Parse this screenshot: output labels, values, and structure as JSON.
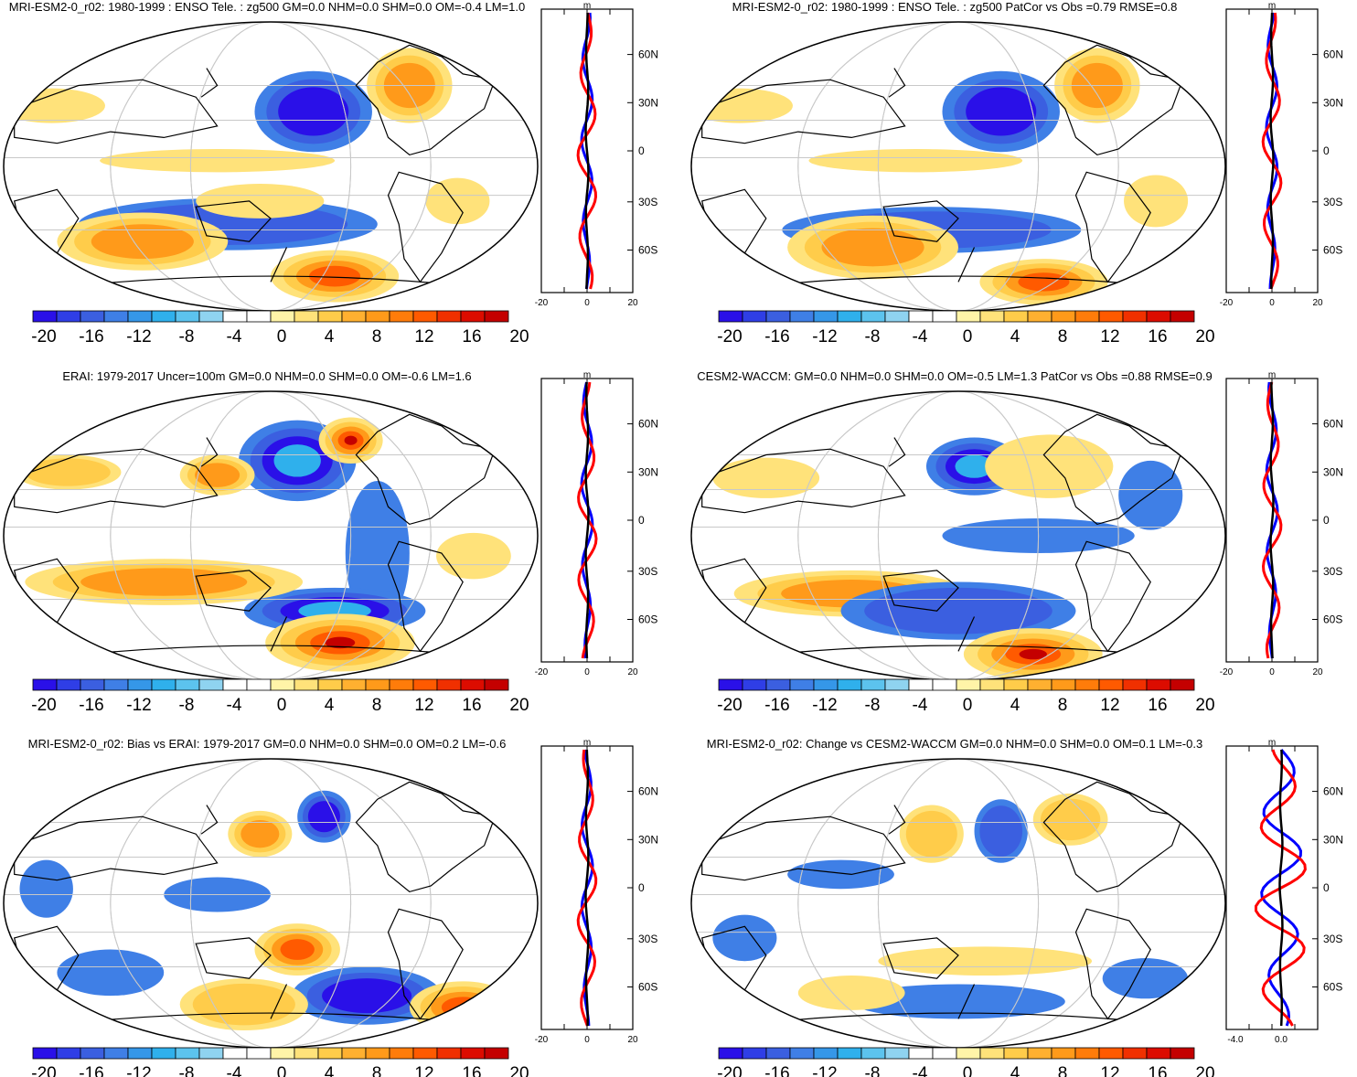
{
  "panels": [
    {
      "title": "MRI-ESM2-0_r02: 1980-1999 : ENSO Tele. : zg500 GM=0.0 NHM=0.0 SHM=0.0 OM=-0.4 LM=1.0",
      "profile": {
        "unit": "m",
        "xticks": [
          "-20",
          "0",
          "20"
        ]
      }
    },
    {
      "title": "MRI-ESM2-0_r02: 1980-1999 : ENSO Tele. : zg500 PatCor vs Obs =0.79 RMSE=0.8",
      "profile": {
        "unit": "m",
        "xticks": [
          "-20",
          "0",
          "20"
        ]
      }
    },
    {
      "title": "ERAI: 1979-2017 Uncer=100m GM=0.0 NHM=0.0 SHM=0.0 OM=-0.6 LM=1.6",
      "profile": {
        "unit": "m",
        "xticks": [
          "-20",
          "0",
          "20"
        ]
      }
    },
    {
      "title": "CESM2-WACCM: GM=0.0 NHM=0.0 SHM=0.0 OM=-0.5 LM=1.3 PatCor vs Obs =0.88 RMSE=0.9",
      "profile": {
        "unit": "m",
        "xticks": [
          "-20",
          "0",
          "20"
        ]
      }
    },
    {
      "title": "MRI-ESM2-0_r02: Bias vs ERAI: 1979-2017 GM=0.0 NHM=0.0 SHM=0.0 OM=0.2 LM=-0.6",
      "profile": {
        "unit": "m",
        "xticks": [
          "-20",
          "0",
          "20"
        ]
      }
    },
    {
      "title": "MRI-ESM2-0_r02: Change vs CESM2-WACCM GM=0.0 NHM=0.0 SHM=0.0 OM=0.1 LM=-0.3",
      "profile": {
        "unit": "m",
        "xticks": [
          "-4.0",
          "0.0"
        ]
      }
    }
  ],
  "lat_labels": [
    "60N",
    "30N",
    "0",
    "30S",
    "60S"
  ],
  "colorbar": {
    "labels": [
      "-20",
      "-16",
      "-12",
      "-8",
      "-4",
      "0",
      "4",
      "8",
      "12",
      "16",
      "20"
    ],
    "colors": [
      "#2a10e8",
      "#2f3ee6",
      "#3b5fe0",
      "#3f7fe6",
      "#3597e8",
      "#2fb0ec",
      "#5cc3ee",
      "#8fd3f0",
      "#ffffff",
      "#ffffff",
      "#fff4a8",
      "#ffe27a",
      "#ffcc4a",
      "#ffb030",
      "#ff9a1a",
      "#ff7c0a",
      "#ff5a00",
      "#f03000",
      "#dc0c00",
      "#c40000"
    ]
  },
  "legend": {
    "blue": "#0000ff",
    "red": "#ff0000",
    "black": "#000000"
  }
}
